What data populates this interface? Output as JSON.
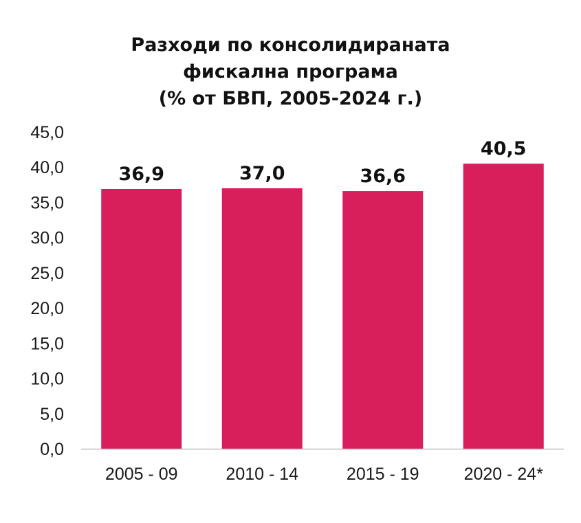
{
  "chart_data": {
    "type": "bar",
    "title_lines": [
      "Разходи по консолидираната",
      "фискална програма",
      "(% от БВП, 2005-2024 г.)"
    ],
    "categories": [
      "2005 - 09",
      "2010 - 14",
      "2015 - 19",
      "2020 - 24*"
    ],
    "values": [
      36.9,
      37.0,
      36.6,
      40.5
    ],
    "data_labels": [
      "36,9",
      "37,0",
      "36,6",
      "40,5"
    ],
    "y_ticks": [
      "0,0",
      "5,0",
      "10,0",
      "15,0",
      "20,0",
      "25,0",
      "30,0",
      "35,0",
      "40,0",
      "45,0"
    ],
    "ylim": [
      0,
      45
    ],
    "y_step": 5,
    "grid": false,
    "legend": "none",
    "bar_color": "#d81f5c",
    "axis_color": "#bfbfbf"
  }
}
